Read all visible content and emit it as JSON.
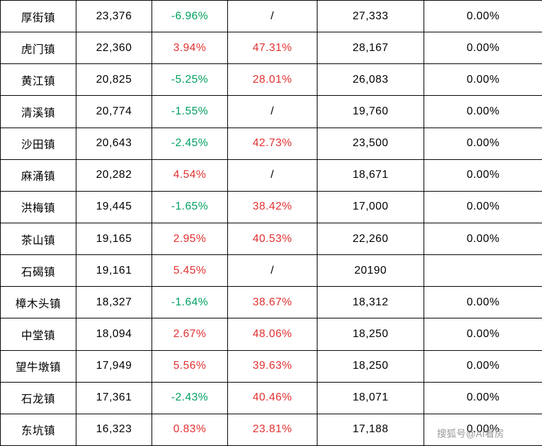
{
  "watermark": "搜狐号@AI看房",
  "colors": {
    "positive": "#e03030",
    "negative": "#00a060",
    "text": "#000000",
    "border": "#000000",
    "background": "#ffffff"
  },
  "rows": [
    {
      "name": "厚街镇",
      "c2": "23,376",
      "c3": "-6.96%",
      "c3_sign": "neg",
      "c4": "/",
      "c4_sign": "",
      "c5": "27,333",
      "c6": "0.00%"
    },
    {
      "name": "虎门镇",
      "c2": "22,360",
      "c3": "3.94%",
      "c3_sign": "pos",
      "c4": "47.31%",
      "c4_sign": "pos",
      "c5": "28,167",
      "c6": "0.00%"
    },
    {
      "name": "黄江镇",
      "c2": "20,825",
      "c3": "-5.25%",
      "c3_sign": "neg",
      "c4": "28.01%",
      "c4_sign": "pos",
      "c5": "26,083",
      "c6": "0.00%"
    },
    {
      "name": "清溪镇",
      "c2": "20,774",
      "c3": "-1.55%",
      "c3_sign": "neg",
      "c4": "/",
      "c4_sign": "",
      "c5": "19,760",
      "c6": "0.00%"
    },
    {
      "name": "沙田镇",
      "c2": "20,643",
      "c3": "-2.45%",
      "c3_sign": "neg",
      "c4": "42.73%",
      "c4_sign": "pos",
      "c5": "23,500",
      "c6": "0.00%"
    },
    {
      "name": "麻涌镇",
      "c2": "20,282",
      "c3": "4.54%",
      "c3_sign": "pos",
      "c4": "/",
      "c4_sign": "",
      "c5": "18,671",
      "c6": "0.00%"
    },
    {
      "name": "洪梅镇",
      "c2": "19,445",
      "c3": "-1.65%",
      "c3_sign": "neg",
      "c4": "38.42%",
      "c4_sign": "pos",
      "c5": "17,000",
      "c6": "0.00%"
    },
    {
      "name": "茶山镇",
      "c2": "19,165",
      "c3": "2.95%",
      "c3_sign": "pos",
      "c4": "40.53%",
      "c4_sign": "pos",
      "c5": "22,260",
      "c6": "0.00%"
    },
    {
      "name": "石碣镇",
      "c2": "19,161",
      "c3": "5.45%",
      "c3_sign": "pos",
      "c4": "/",
      "c4_sign": "",
      "c5": "20190",
      "c6": ""
    },
    {
      "name": "樟木头镇",
      "c2": "18,327",
      "c3": "-1.64%",
      "c3_sign": "neg",
      "c4": "38.67%",
      "c4_sign": "pos",
      "c5": "18,312",
      "c6": "0.00%"
    },
    {
      "name": "中堂镇",
      "c2": "18,094",
      "c3": "2.67%",
      "c3_sign": "pos",
      "c4": "48.06%",
      "c4_sign": "pos",
      "c5": "18,250",
      "c6": "0.00%"
    },
    {
      "name": "望牛墩镇",
      "c2": "17,949",
      "c3": "5.56%",
      "c3_sign": "pos",
      "c4": "39.63%",
      "c4_sign": "pos",
      "c5": "18,250",
      "c6": "0.00%"
    },
    {
      "name": "石龙镇",
      "c2": "17,361",
      "c3": "-2.43%",
      "c3_sign": "neg",
      "c4": "40.46%",
      "c4_sign": "pos",
      "c5": "18,071",
      "c6": "0.00%"
    },
    {
      "name": "东坑镇",
      "c2": "16,323",
      "c3": "0.83%",
      "c3_sign": "pos",
      "c4": "23.81%",
      "c4_sign": "pos",
      "c5": "17,188",
      "c6": "0.00%"
    }
  ]
}
